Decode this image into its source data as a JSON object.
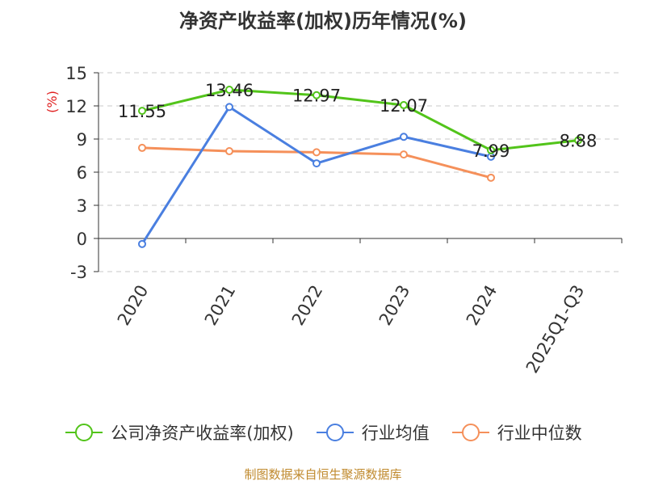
{
  "chart_data": {
    "type": "line",
    "title": "净资产收益率(加权)历年情况(%)",
    "ylabel": "(%)",
    "xlabel": "",
    "categories": [
      "2020",
      "2021",
      "2022",
      "2023",
      "2024",
      "2025Q1-Q3"
    ],
    "ylim": [
      -3,
      15
    ],
    "yticks": [
      -3,
      0,
      3,
      6,
      9,
      12,
      15
    ],
    "grid": true,
    "legend_position": "bottom",
    "series": [
      {
        "name": "公司净资产收益率(加权)",
        "color": "#52c41a",
        "values": [
          11.55,
          13.46,
          12.97,
          12.07,
          7.99,
          8.88
        ],
        "labels": [
          "11.55",
          "13.46",
          "12.97",
          "12.07",
          "7.99",
          "8.88"
        ]
      },
      {
        "name": "行业均值",
        "color": "#4a7fe0",
        "values": [
          -0.5,
          11.9,
          6.8,
          9.2,
          7.4,
          null
        ]
      },
      {
        "name": "行业中位数",
        "color": "#f5905a",
        "values": [
          8.2,
          7.9,
          7.8,
          7.6,
          5.5,
          null
        ]
      }
    ]
  },
  "source_note": "制图数据来自恒生聚源数据库"
}
